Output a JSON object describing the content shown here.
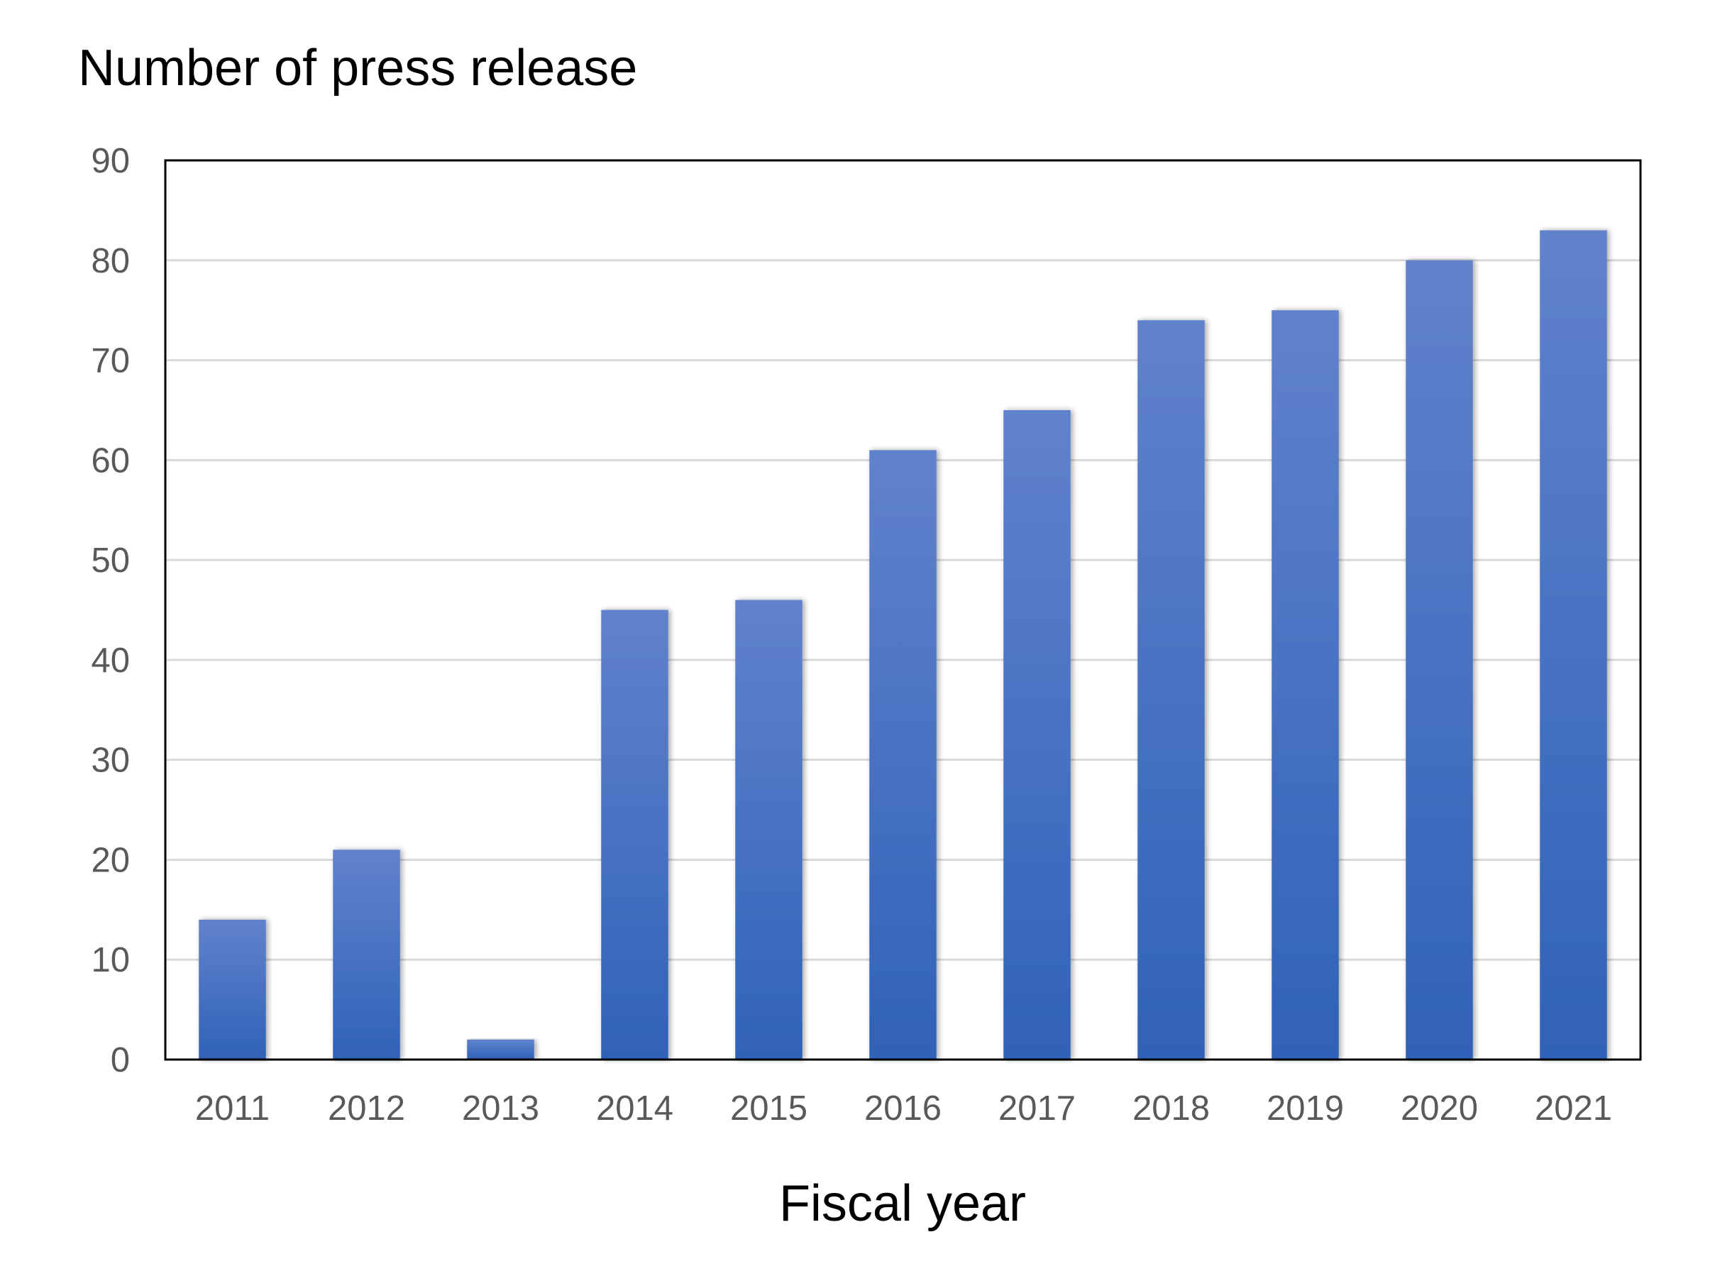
{
  "chart_data": {
    "type": "bar",
    "title": "Number of press release",
    "xlabel": "Fiscal year",
    "ylabel": "",
    "categories": [
      "2011",
      "2012",
      "2013",
      "2014",
      "2015",
      "2016",
      "2017",
      "2018",
      "2019",
      "2020",
      "2021"
    ],
    "values": [
      14,
      21,
      2,
      45,
      46,
      61,
      65,
      74,
      75,
      80,
      83
    ],
    "ylim": [
      0,
      90
    ],
    "yticks": [
      "0",
      "10",
      "20",
      "30",
      "40",
      "50",
      "60",
      "70",
      "80",
      "90"
    ],
    "grid": true,
    "legend": "none",
    "colors": {
      "bar_top": "#6182cc",
      "bar_bottom": "#2f62b8",
      "grid": "#d9d9d9",
      "tick_label": "#595959",
      "frame": "#000000"
    }
  }
}
